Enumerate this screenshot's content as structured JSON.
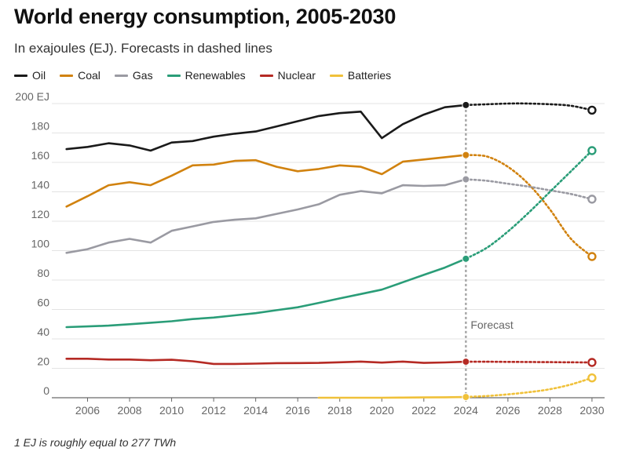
{
  "title": "World energy consumption, 2005-2030",
  "subtitle": "In exajoules (EJ). Forecasts in dashed lines",
  "footnote": "1 EJ is roughly equal to 277 TWh",
  "chart_data": {
    "type": "line",
    "title": "World energy consumption, 2005-2030",
    "ylabel": "EJ",
    "xlim": [
      2004.3,
      2030.6
    ],
    "ylim": [
      0,
      200
    ],
    "y_ticks": [
      "0",
      "20",
      "40",
      "60",
      "80",
      "100",
      "120",
      "140",
      "160",
      "180",
      "200 EJ"
    ],
    "x_ticks": [
      "2006",
      "2008",
      "2010",
      "2012",
      "2014",
      "2016",
      "2018",
      "2020",
      "2022",
      "2024",
      "2026",
      "2028",
      "2030"
    ],
    "forecast_year": 2024,
    "forecast_label": "Forecast",
    "series": [
      {
        "name": "Oil",
        "color": "#1a1a1a",
        "x": [
          2005,
          2006,
          2007,
          2008,
          2009,
          2010,
          2011,
          2012,
          2013,
          2014,
          2015,
          2016,
          2017,
          2018,
          2019,
          2020,
          2021,
          2022,
          2023,
          2024
        ],
        "values": [
          169,
          170.5,
          173,
          171.5,
          168,
          173.5,
          174.5,
          177.5,
          179.5,
          181,
          184.5,
          188,
          191.5,
          193.5,
          194.5,
          176.5,
          186,
          192.5,
          197.5,
          199
        ],
        "forecast_x": [
          2024,
          2025,
          2026,
          2027,
          2028,
          2029,
          2030
        ],
        "forecast_values": [
          199,
          199.5,
          200,
          200,
          199.5,
          198.5,
          195.5
        ]
      },
      {
        "name": "Coal",
        "color": "#d1820f",
        "x": [
          2005,
          2006,
          2007,
          2008,
          2009,
          2010,
          2011,
          2012,
          2013,
          2014,
          2015,
          2016,
          2017,
          2018,
          2019,
          2020,
          2021,
          2022,
          2023,
          2024
        ],
        "values": [
          130,
          137,
          144.5,
          146.5,
          144.5,
          151,
          158,
          158.5,
          161,
          161.5,
          157,
          154,
          155.5,
          158,
          157,
          152,
          160.5,
          162,
          163.5,
          165
        ],
        "forecast_x": [
          2024,
          2025,
          2026,
          2027,
          2028,
          2029,
          2030
        ],
        "forecast_values": [
          165,
          164,
          157,
          145,
          128,
          108,
          96
        ]
      },
      {
        "name": "Gas",
        "color": "#9a9aa2",
        "x": [
          2005,
          2006,
          2007,
          2008,
          2009,
          2010,
          2011,
          2012,
          2013,
          2014,
          2015,
          2016,
          2017,
          2018,
          2019,
          2020,
          2021,
          2022,
          2023,
          2024
        ],
        "values": [
          98.5,
          101,
          105.5,
          108,
          105.5,
          113.5,
          116.5,
          119.5,
          121,
          122,
          125,
          128,
          131.5,
          138,
          140.5,
          139,
          144.5,
          144,
          144.5,
          148.5
        ],
        "forecast_x": [
          2024,
          2025,
          2026,
          2027,
          2028,
          2029,
          2030
        ],
        "forecast_values": [
          148.5,
          147.5,
          145.5,
          143.5,
          141,
          138.5,
          135
        ]
      },
      {
        "name": "Renewables",
        "color": "#2a9d78",
        "x": [
          2005,
          2006,
          2007,
          2008,
          2009,
          2010,
          2011,
          2012,
          2013,
          2014,
          2015,
          2016,
          2017,
          2018,
          2019,
          2020,
          2021,
          2022,
          2023,
          2024
        ],
        "values": [
          48,
          48.5,
          49,
          50,
          51,
          52,
          53.5,
          54.5,
          56,
          57.5,
          59.5,
          61.5,
          64.5,
          67.5,
          70.5,
          73.5,
          78.5,
          83.5,
          88.5,
          94.5
        ],
        "forecast_x": [
          2024,
          2025,
          2026,
          2027,
          2028,
          2029,
          2030
        ],
        "forecast_values": [
          94.5,
          102,
          113,
          126,
          140,
          154,
          168
        ]
      },
      {
        "name": "Nuclear",
        "color": "#b52a24",
        "x": [
          2005,
          2006,
          2007,
          2008,
          2009,
          2010,
          2011,
          2012,
          2013,
          2014,
          2015,
          2016,
          2017,
          2018,
          2019,
          2020,
          2021,
          2022,
          2023,
          2024
        ],
        "values": [
          26.5,
          26.5,
          26,
          26,
          25.5,
          25.8,
          24.8,
          23,
          23,
          23.2,
          23.5,
          23.6,
          23.7,
          24.1,
          24.6,
          23.9,
          24.6,
          23.7,
          24,
          24.5
        ],
        "forecast_x": [
          2024,
          2025,
          2026,
          2027,
          2028,
          2029,
          2030
        ],
        "forecast_values": [
          24.5,
          24.5,
          24.4,
          24.3,
          24.2,
          24.1,
          24
        ]
      },
      {
        "name": "Batteries",
        "color": "#f0c13a",
        "x": [
          2017,
          2018,
          2019,
          2020,
          2021,
          2022,
          2023,
          2024
        ],
        "values": [
          0,
          0,
          0,
          0,
          0.1,
          0.2,
          0.3,
          0.5
        ],
        "forecast_x": [
          2024,
          2025,
          2026,
          2027,
          2028,
          2029,
          2030
        ],
        "forecast_values": [
          0.5,
          1.2,
          2.3,
          3.8,
          5.8,
          9,
          13.5
        ]
      }
    ]
  }
}
